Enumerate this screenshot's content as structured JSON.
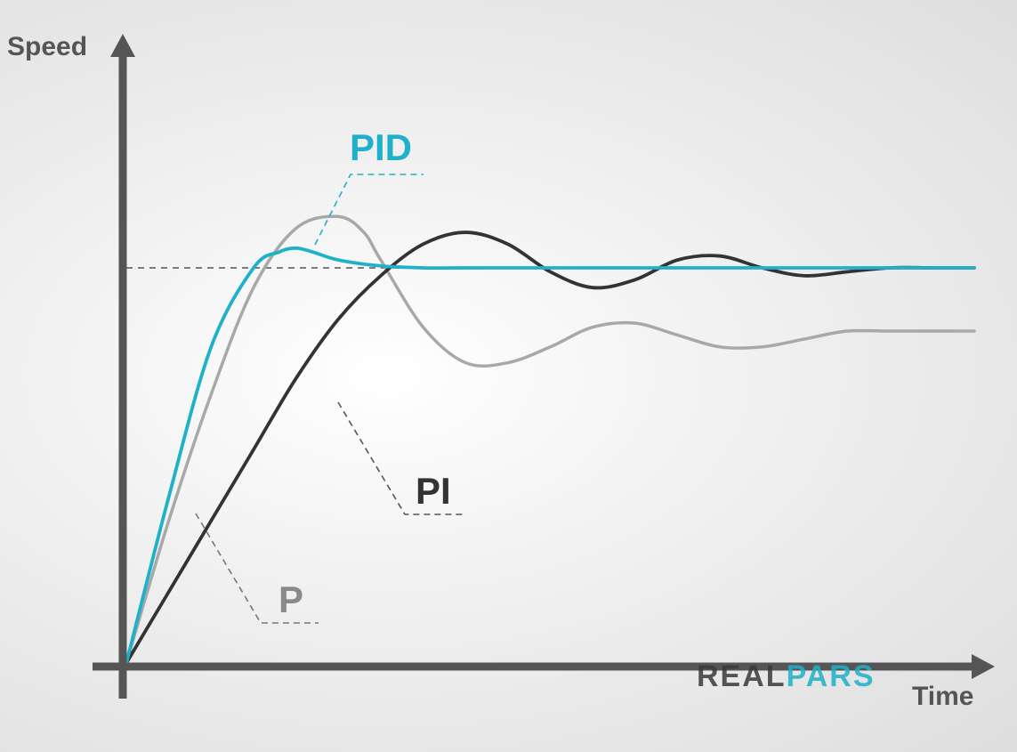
{
  "chart_data": {
    "type": "line",
    "title": "",
    "xlabel": "Time",
    "ylabel": "Speed",
    "xlim": [
      0,
      10
    ],
    "ylim": [
      0,
      1.6
    ],
    "grid": false,
    "legend": "none",
    "setpoint": {
      "y": 1.0,
      "style": "dashed",
      "color": "#555555"
    },
    "series": [
      {
        "name": "PID",
        "color": "#1fb1c9",
        "x": [
          0,
          0.5,
          1.0,
          1.5,
          1.8,
          2.0,
          2.2,
          2.5,
          3.0,
          3.5,
          4.0,
          5.0,
          6.0,
          8.0,
          10.0
        ],
        "y": [
          0,
          0.42,
          0.8,
          1.0,
          1.04,
          1.05,
          1.04,
          1.02,
          1.005,
          1.0,
          1.0,
          1.0,
          1.0,
          1.0,
          1.0
        ]
      },
      {
        "name": "P",
        "color": "#a8a8a8",
        "x": [
          0,
          0.5,
          1.0,
          1.5,
          2.0,
          2.5,
          2.8,
          3.0,
          3.5,
          4.0,
          4.5,
          5.0,
          5.5,
          6.0,
          6.5,
          7.0,
          7.5,
          8.0,
          8.5,
          9.0,
          10.0
        ],
        "y": [
          0,
          0.36,
          0.68,
          0.95,
          1.1,
          1.13,
          1.09,
          1.02,
          0.85,
          0.76,
          0.76,
          0.8,
          0.85,
          0.86,
          0.83,
          0.8,
          0.8,
          0.82,
          0.84,
          0.84,
          0.84
        ]
      },
      {
        "name": "PI",
        "color": "#333333",
        "x": [
          0,
          0.5,
          1.0,
          1.5,
          2.0,
          2.5,
          3.0,
          3.5,
          4.0,
          4.5,
          5.0,
          5.5,
          6.0,
          6.5,
          7.0,
          7.5,
          8.0,
          8.5,
          9.0,
          9.5,
          10.0
        ],
        "y": [
          0,
          0.18,
          0.36,
          0.54,
          0.72,
          0.87,
          0.98,
          1.06,
          1.09,
          1.06,
          0.99,
          0.95,
          0.97,
          1.02,
          1.03,
          1.0,
          0.98,
          0.99,
          1.0,
          1.0,
          1.0
        ]
      }
    ],
    "annotations": [
      {
        "text": "PID",
        "series": "PID",
        "color": "#1fb1c9"
      },
      {
        "text": "PI",
        "series": "PI",
        "color": "#333333"
      },
      {
        "text": "P",
        "series": "P",
        "color": "#8a8a8a"
      }
    ]
  },
  "watermark": {
    "text_part1": "REAL",
    "text_part2": "PARS",
    "color1": "#3a3a3a",
    "color2": "#1fb1c9"
  }
}
